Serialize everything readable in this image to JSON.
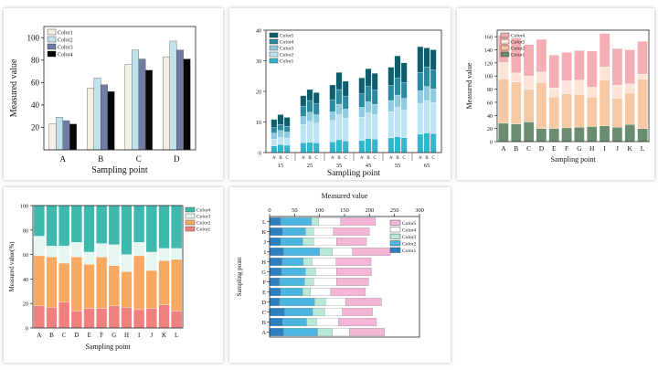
{
  "colors": {
    "chart1": [
      "#f6f0e4",
      "#bfe2ec",
      "#6f7ba3",
      "#050505"
    ],
    "chart2": [
      "#33b6cc",
      "#bde4f2",
      "#8ecae0",
      "#2c8aa0",
      "#0d5e6c"
    ],
    "chart3": [
      "#6a8d6f",
      "#f6c9a4",
      "#fde4d6",
      "#f4aeb3"
    ],
    "chart4": [
      "#f08080",
      "#f7a861",
      "#e6f6f0",
      "#3db9ad"
    ],
    "chart5": [
      "#2d7fbf",
      "#4ab6e0",
      "#b7e8d8",
      "#ffffff",
      "#f4b6d6"
    ]
  },
  "chart_data": [
    {
      "id": "chart1",
      "type": "bar",
      "xlabel": "Sampling point",
      "ylabel": "Measured value",
      "ylim": [
        0,
        110
      ],
      "yticks": [
        20,
        40,
        60,
        80,
        100
      ],
      "categories": [
        "A",
        "B",
        "C",
        "D"
      ],
      "legend_position": "top-left",
      "series": [
        {
          "name": "Color1",
          "values": [
            23,
            55,
            76,
            83
          ]
        },
        {
          "name": "Color2",
          "values": [
            29,
            64,
            89,
            97
          ]
        },
        {
          "name": "Color3",
          "values": [
            26,
            58,
            81,
            89
          ]
        },
        {
          "name": "Color4",
          "values": [
            23,
            52,
            71,
            81
          ]
        }
      ]
    },
    {
      "id": "chart2",
      "type": "bar",
      "stacked": true,
      "xlabel": "Sampling point",
      "ylim": [
        0,
        40
      ],
      "yticks": [
        0,
        10,
        20,
        30,
        40
      ],
      "groups": [
        "15",
        "25",
        "35",
        "45",
        "55",
        "65"
      ],
      "subcategories": [
        "A",
        "B",
        "C"
      ],
      "legend_position": "top-left",
      "series": [
        {
          "name": "Color1",
          "values": [
            2.2,
            2.6,
            2.4,
            3.2,
            3.4,
            3.2,
            3.5,
            4.2,
            3.8,
            4.0,
            4.6,
            4.4,
            4.8,
            5.2,
            4.9,
            6.0,
            6.4,
            6.2
          ]
        },
        {
          "name": "Color2",
          "values": [
            2.2,
            2.4,
            2.3,
            6.0,
            6.8,
            6.4,
            7.0,
            8.2,
            7.4,
            7.6,
            8.4,
            8.0,
            8.6,
            9.6,
            9.0,
            10.0,
            10.6,
            10.2
          ]
        },
        {
          "name": "Color3",
          "values": [
            2.0,
            2.2,
            2.0,
            2.6,
            3.0,
            2.8,
            2.8,
            3.4,
            3.0,
            3.2,
            3.6,
            3.4,
            3.6,
            4.0,
            3.8,
            4.2,
            4.6,
            4.4
          ]
        },
        {
          "name": "Color4",
          "values": [
            1.8,
            2.0,
            1.9,
            3.4,
            3.8,
            3.6,
            4.0,
            4.8,
            4.2,
            4.4,
            5.0,
            4.6,
            5.0,
            5.6,
            5.2,
            6.0,
            6.4,
            6.2
          ]
        },
        {
          "name": "Color5",
          "values": [
            2.6,
            3.2,
            2.9,
            3.4,
            3.6,
            3.6,
            4.8,
            5.6,
            4.9,
            5.2,
            5.8,
            5.5,
            5.9,
            7.2,
            6.4,
            8.4,
            6.2,
            6.6
          ]
        }
      ]
    },
    {
      "id": "chart3",
      "type": "bar",
      "stacked": true,
      "xlabel": "Sampling point",
      "ylabel": "Measured value",
      "ylim": [
        0,
        170
      ],
      "yticks": [
        0,
        20,
        40,
        60,
        80,
        100,
        120,
        140,
        160
      ],
      "categories": [
        "A",
        "B",
        "C",
        "D",
        "E",
        "F",
        "G",
        "H",
        "I",
        "J",
        "K",
        "L"
      ],
      "legend_position": "top-left",
      "series": [
        {
          "name": "Color1",
          "values": [
            28,
            27,
            30,
            20,
            20,
            21,
            22,
            23,
            24,
            22,
            26,
            20
          ]
        },
        {
          "name": "Color2",
          "values": [
            68,
            64,
            50,
            70,
            48,
            52,
            50,
            45,
            70,
            44,
            48,
            75
          ]
        },
        {
          "name": "Color3",
          "values": [
            25,
            14,
            20,
            16,
            14,
            20,
            22,
            15,
            20,
            20,
            14,
            8
          ]
        },
        {
          "name": "Color4",
          "values": [
            41,
            53,
            48,
            50,
            50,
            43,
            45,
            55,
            51,
            56,
            52,
            50
          ]
        }
      ]
    },
    {
      "id": "chart4",
      "type": "bar",
      "stacked": true,
      "percent": true,
      "xlabel": "Sampling point",
      "ylabel": "Measured value(%)",
      "ylim": [
        0,
        100
      ],
      "yticks": [
        0,
        20,
        40,
        60,
        80,
        100
      ],
      "categories": [
        "A",
        "B",
        "C",
        "D",
        "E",
        "F",
        "G",
        "H",
        "I",
        "J",
        "K",
        "L"
      ],
      "legend_position": "top-right",
      "series": [
        {
          "name": "Color1",
          "values": [
            18,
            17,
            21,
            14,
            16,
            16,
            18,
            17,
            15,
            16,
            19,
            14
          ]
        },
        {
          "name": "Color2",
          "values": [
            41,
            41,
            32,
            44,
            36,
            42,
            33,
            29,
            44,
            31,
            36,
            42
          ]
        },
        {
          "name": "Color3",
          "values": [
            16,
            9,
            14,
            12,
            10,
            11,
            17,
            14,
            11,
            15,
            10,
            9
          ]
        },
        {
          "name": "Color4",
          "values": [
            25,
            33,
            33,
            30,
            38,
            31,
            32,
            40,
            30,
            38,
            35,
            35
          ]
        }
      ]
    },
    {
      "id": "chart5",
      "type": "bar",
      "orientation": "horizontal",
      "stacked": true,
      "xlabel": "Measured value",
      "ylabel": "Sampling point",
      "xlim": [
        0,
        300
      ],
      "xticks": [
        0,
        50,
        100,
        150,
        200,
        250,
        300
      ],
      "categories": [
        "A",
        "B",
        "C",
        "D",
        "E",
        "F",
        "G",
        "H",
        "I",
        "J",
        "K",
        "L"
      ],
      "legend_position": "right",
      "series": [
        {
          "name": "Color1",
          "values": [
            28,
            26,
            30,
            20,
            22,
            20,
            24,
            25,
            28,
            22,
            26,
            22
          ]
        },
        {
          "name": "Color2",
          "values": [
            68,
            48,
            56,
            70,
            44,
            50,
            48,
            42,
            72,
            44,
            46,
            62
          ]
        },
        {
          "name": "Color3",
          "values": [
            30,
            20,
            24,
            22,
            16,
            18,
            20,
            18,
            26,
            22,
            16,
            14
          ]
        },
        {
          "name": "Color4",
          "values": [
            34,
            44,
            36,
            40,
            40,
            46,
            42,
            48,
            40,
            46,
            40,
            44
          ]
        },
        {
          "name": "Color5",
          "values": [
            70,
            76,
            60,
            72,
            70,
            64,
            70,
            70,
            76,
            60,
            72,
            70
          ]
        }
      ]
    }
  ]
}
